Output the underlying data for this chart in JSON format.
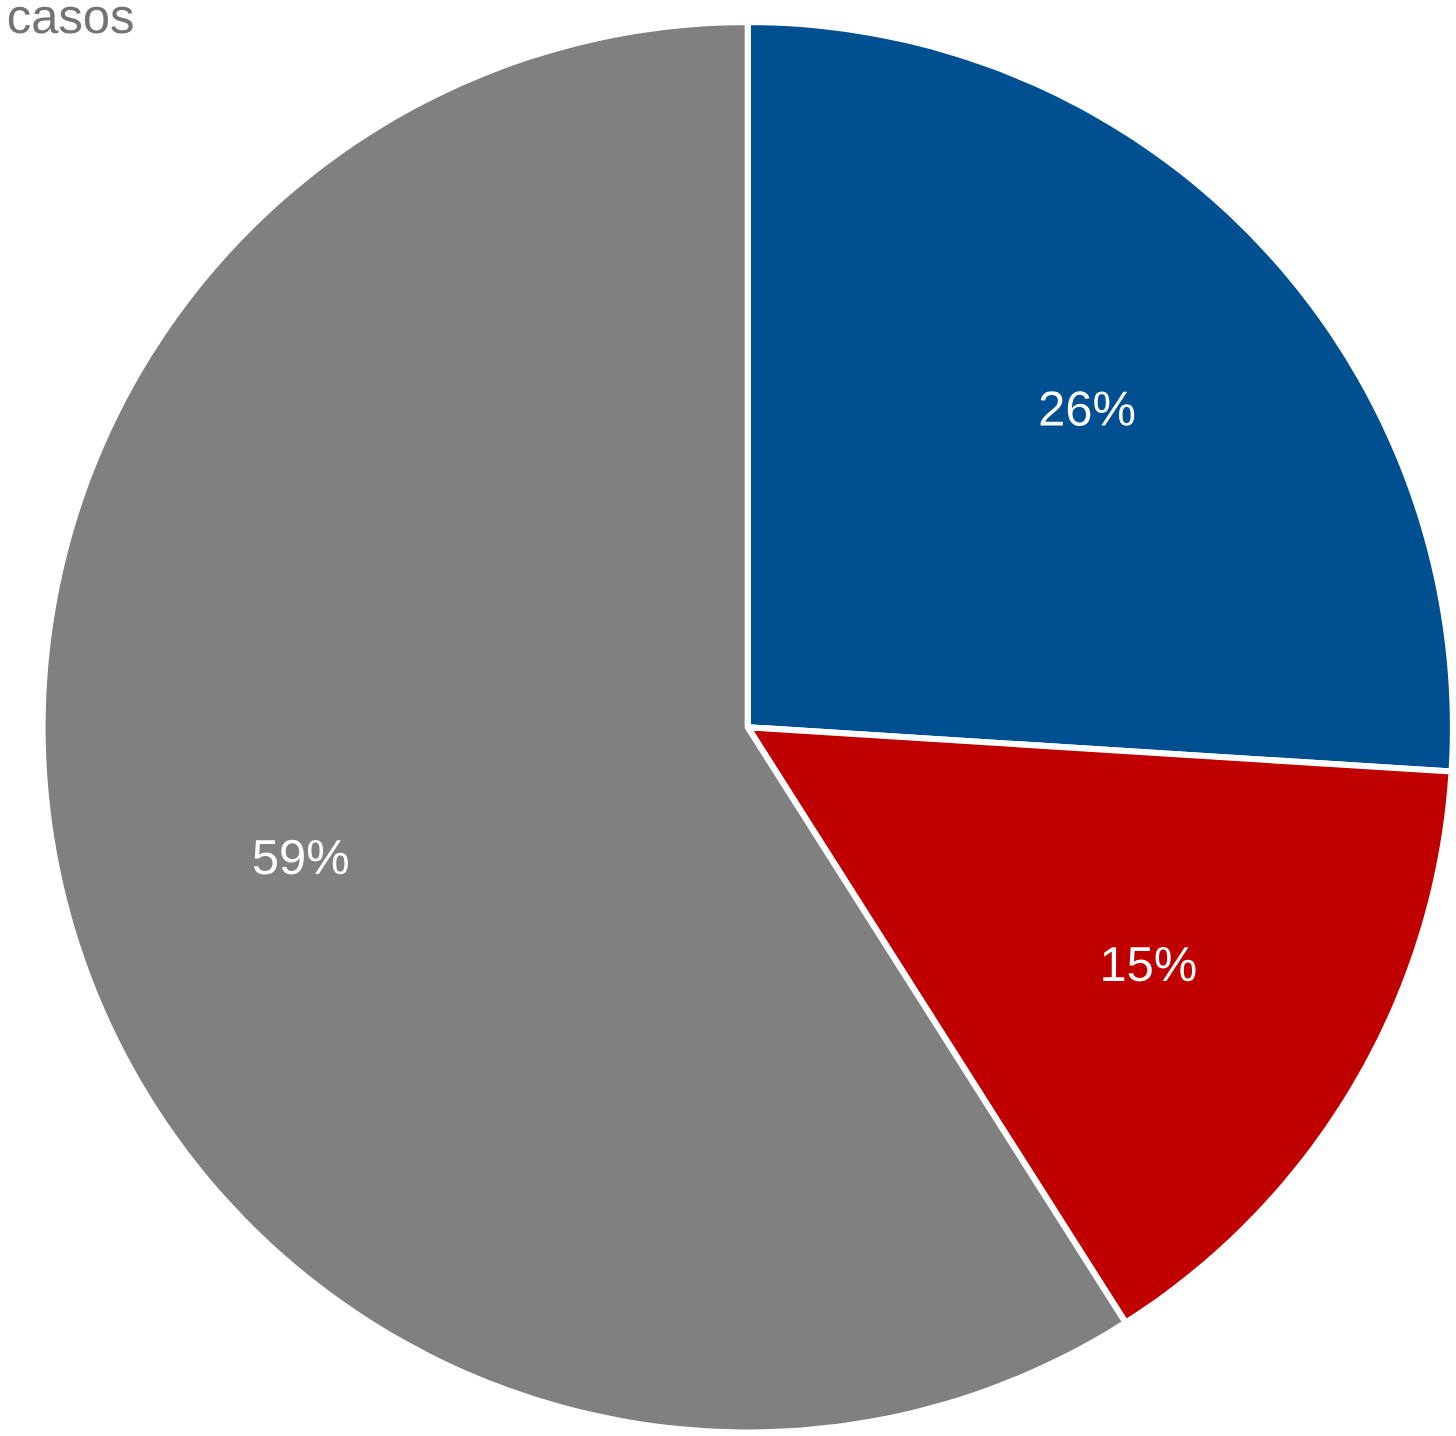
{
  "chart_data": {
    "type": "pie",
    "categories": [
      null,
      null,
      null
    ],
    "values": [
      26,
      15,
      59
    ],
    "colors": [
      "#004f91",
      "#c00000",
      "#808080"
    ],
    "value_labels": [
      "26%",
      "15%",
      "59%"
    ],
    "annotations": [
      "casos"
    ]
  }
}
